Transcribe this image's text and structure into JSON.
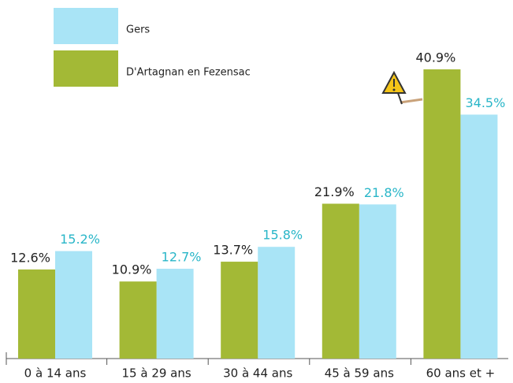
{
  "chart_data": {
    "type": "bar",
    "categories": [
      "0 à 14 ans",
      "15 à 29 ans",
      "30 à 44 ans",
      "45 à 59 ans",
      "60 ans et +"
    ],
    "series": [
      {
        "name": "Gers",
        "color": "#a9e4f6",
        "label_color": "#29b6c8",
        "values": [
          15.2,
          12.7,
          15.8,
          21.8,
          34.5
        ],
        "value_labels": [
          "15.2%",
          "12.7%",
          "15.8%",
          "21.8%",
          "34.5%"
        ]
      },
      {
        "name": "D'Artagnan en Fezensac",
        "color": "#a3b936",
        "label_color": "#222222",
        "values": [
          12.6,
          10.9,
          13.7,
          21.9,
          40.9
        ],
        "value_labels": [
          "12.6%",
          "10.9%",
          "13.7%",
          "21.9%",
          "40.9%"
        ]
      }
    ]
  }
}
